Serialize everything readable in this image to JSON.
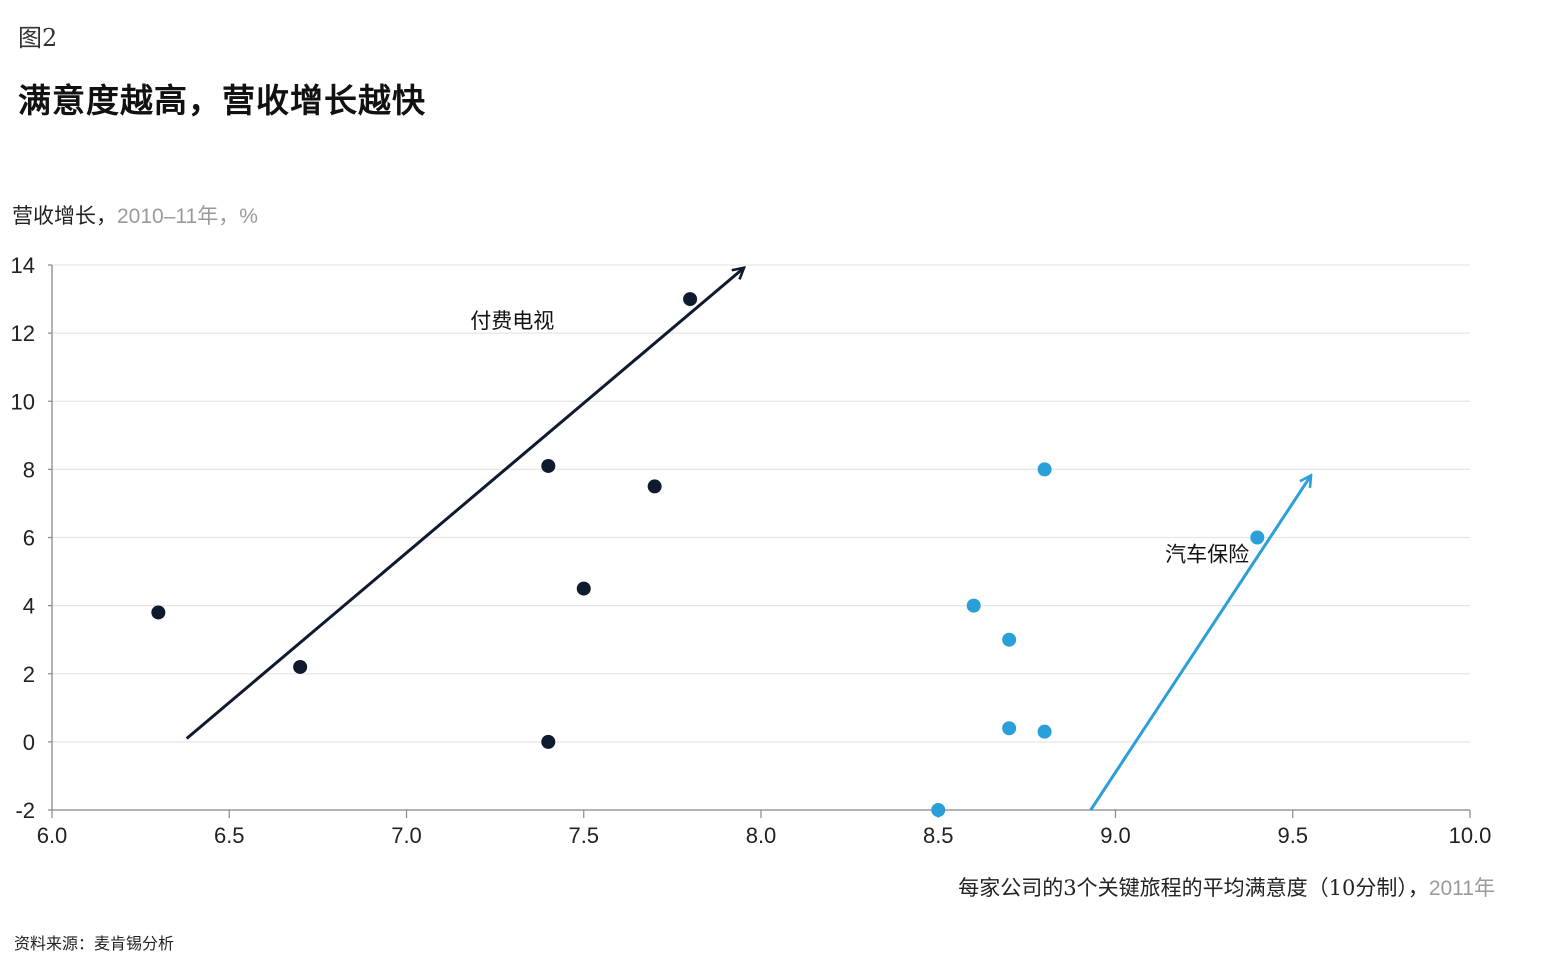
{
  "figure_label": "图2",
  "title": "满意度越高，营收增长越快",
  "ylabel": {
    "main": "营收增长，",
    "muted": "2010–11年，%"
  },
  "xlabel": {
    "main": "每家公司的3个关键旅程的平均满意度（10分制），",
    "muted": "2011年"
  },
  "source": "资料来源：麦肯锡分析",
  "colors": {
    "dark": "#0f1a2e",
    "blue": "#2b9fd8",
    "grid": "#e6e6e6",
    "axis": "#888888"
  },
  "chart_data": {
    "type": "scatter",
    "xlim": [
      6.0,
      10.0
    ],
    "ylim": [
      -2,
      14
    ],
    "x_ticks": [
      "6.0",
      "6.5",
      "7.0",
      "7.5",
      "8.0",
      "8.5",
      "9.0",
      "9.5",
      "10.0"
    ],
    "y_ticks": [
      "14",
      "12",
      "10",
      "8",
      "6",
      "4",
      "2",
      "0",
      "-2"
    ],
    "grid": true,
    "series": [
      {
        "name": "付费电视",
        "color": "#0f1a2e",
        "points": [
          {
            "x": 6.3,
            "y": 3.8
          },
          {
            "x": 6.7,
            "y": 2.2
          },
          {
            "x": 7.4,
            "y": 8.1
          },
          {
            "x": 7.4,
            "y": 0.0
          },
          {
            "x": 7.5,
            "y": 4.5
          },
          {
            "x": 7.7,
            "y": 7.5
          },
          {
            "x": 7.8,
            "y": 13.0
          }
        ],
        "trend_arrow": {
          "from": [
            6.38,
            0.1
          ],
          "to": [
            7.95,
            13.9
          ]
        }
      },
      {
        "name": "汽车保险",
        "color": "#2b9fd8",
        "points": [
          {
            "x": 8.5,
            "y": -2.0
          },
          {
            "x": 8.6,
            "y": 4.0
          },
          {
            "x": 8.7,
            "y": 3.0
          },
          {
            "x": 8.7,
            "y": 0.4
          },
          {
            "x": 8.8,
            "y": 8.0
          },
          {
            "x": 8.8,
            "y": 0.3
          },
          {
            "x": 9.4,
            "y": 6.0
          }
        ],
        "trend_arrow": {
          "from": [
            8.93,
            -2.0
          ],
          "to": [
            9.55,
            7.8
          ]
        }
      }
    ]
  }
}
